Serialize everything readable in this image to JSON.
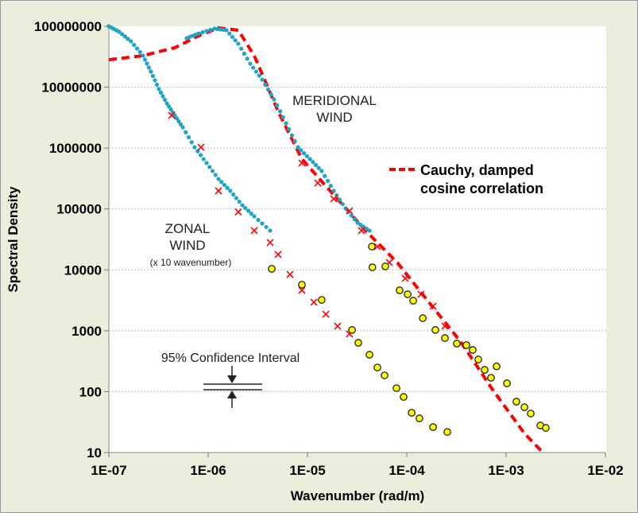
{
  "chart_data": {
    "type": "scatter",
    "xlabel": "Wavenumber (rad/m)",
    "ylabel": "Spectral Density",
    "xscale": "log",
    "yscale": "log",
    "xlim": [
      1e-07,
      0.01
    ],
    "ylim": [
      10,
      100000000
    ],
    "x_ticks": [
      "1E-07",
      "1E-06",
      "1E-05",
      "1E-04",
      "1E-03",
      "1E-02"
    ],
    "y_ticks": [
      "100000000",
      "10000000",
      "1000000",
      "100000",
      "10000",
      "1000",
      "100",
      "10"
    ],
    "grid": "horizontal dotted",
    "legend_position": "right",
    "legend": {
      "line1": "Cauchy, damped",
      "line2": "cosine correlation"
    },
    "annotations": {
      "meridional_1": "MERIDIONAL",
      "meridional_2": "WIND",
      "zonal_1": "ZONAL",
      "zonal_2": "WIND",
      "zonal_note": "(x 10 wavenumber)",
      "confidence": "95% Confidence Interval"
    },
    "colors": {
      "cyan": "#1fa3c8",
      "red": "#ff0000",
      "yellow": "#ffff00",
      "background": "#ebeedd"
    },
    "series": [
      {
        "marker": "dot",
        "color": "#1fa3c8",
        "points": [
          [
            1e-07,
            100000000.0
          ],
          [
            1.27e-07,
            81100000.0
          ],
          [
            1.67e-07,
            56500000.0
          ],
          [
            2.21e-07,
            32900000.0
          ],
          [
            2.65e-07,
            18000000.0
          ],
          [
            3.19e-07,
            9300000.0
          ],
          [
            3.84e-07,
            5410000.0
          ],
          [
            4.61e-07,
            3440000.0
          ],
          [
            5.55e-07,
            2190000.0
          ],
          [
            7.31e-07,
            1030000.0
          ],
          [
            9.64e-07,
            567000.0
          ],
          [
            1.27e-06,
            311000.0
          ],
          [
            1.67e-06,
            198000.0
          ],
          [
            2.21e-06,
            115000.0
          ],
          [
            2.91e-06,
            75600.0
          ],
          [
            4.21e-06,
            44100.0
          ]
        ]
      },
      {
        "marker": "dot",
        "color": "#1fa3c8",
        "points": [
          [
            6.08e-07,
            63700000.0
          ],
          [
            8.02e-07,
            76200000.0
          ],
          [
            1.16e-06,
            91400000.0
          ],
          [
            1.53e-06,
            86100000.0
          ],
          [
            2.01e-06,
            51700000.0
          ],
          [
            2.65e-06,
            24300000.0
          ],
          [
            3.5e-06,
            13300000.0
          ],
          [
            4.61e-06,
            6290000.0
          ],
          [
            6.08e-06,
            2550000.0
          ],
          [
            8.02e-06,
            1030000.0
          ],
          [
            1.06e-05,
            659000.0
          ],
          [
            1.39e-05,
            420000.0
          ],
          [
            1.84e-05,
            198000.0
          ],
          [
            2.42e-05,
            102000.0
          ],
          [
            3.19e-05,
            59400.0
          ],
          [
            4.21e-05,
            44100.0
          ]
        ]
      },
      {
        "marker": "cross",
        "color": "#ff0000",
        "points": [
          [
            4.29e-07,
            3440000.0
          ],
          [
            8.47e-07,
            1030000.0
          ],
          [
            1.27e-06,
            198000.0
          ],
          [
            2.01e-06,
            89500.0
          ],
          [
            2.91e-06,
            44100.0
          ],
          [
            4.21e-06,
            28100.0
          ],
          [
            5.06e-06,
            17900.0
          ],
          [
            6.67e-06,
            8420
          ],
          [
            8.79e-06,
            4610
          ],
          [
            1.16e-05,
            2940
          ],
          [
            1.53e-05,
            1870
          ],
          [
            2.01e-05,
            1190
          ],
          [
            2.65e-05,
            883
          ]
        ]
      },
      {
        "marker": "cross",
        "color": "#ff0000",
        "points": [
          [
            8.79e-06,
            567000.0
          ],
          [
            1.27e-05,
            267000.0
          ],
          [
            1.84e-05,
            147000.0
          ],
          [
            2.65e-05,
            93300.0
          ],
          [
            3.5e-05,
            44100.0
          ],
          [
            5.06e-05,
            24100.0
          ],
          [
            6.67e-05,
            13200.0
          ],
          [
            9.64e-05,
            7240
          ],
          [
            0.000139,
            3970
          ],
          [
            0.000184,
            2530
          ],
          [
            0.000242,
            1190
          ]
        ]
      },
      {
        "marker": "circle",
        "color": "#ffff00",
        "points": [
          [
            4.37e-06,
            10400.0
          ],
          [
            8.79e-06,
            5700
          ],
          [
            1.39e-05,
            3210
          ],
          [
            2.81e-05,
            1030
          ],
          [
            3.25e-05,
            634
          ],
          [
            4.21e-05,
            404
          ],
          [
            5.06e-05,
            249
          ],
          [
            5.97e-05,
            185
          ],
          [
            7.87e-05,
            114
          ],
          [
            9.29e-05,
            82
          ],
          [
            0.000112,
            45
          ],
          [
            0.000134,
            36.4
          ],
          [
            0.000184,
            26.2
          ],
          [
            0.000256,
            21.8
          ]
        ]
      },
      {
        "marker": "circle",
        "color": "#ffff00",
        "points": [
          [
            4.45e-05,
            24100.0
          ],
          [
            4.5e-05,
            11000.0
          ],
          [
            6.08e-05,
            11400.0
          ],
          [
            8.47e-05,
            4610
          ],
          [
            0.000102,
            3970
          ],
          [
            0.000116,
            3120
          ],
          [
            0.000145,
            1610
          ],
          [
            0.000194,
            1030
          ],
          [
            0.000242,
            759
          ],
          [
            0.000319,
            615
          ],
          [
            0.000398,
            580
          ],
          [
            0.000461,
            484
          ],
          [
            0.000525,
            337
          ],
          [
            0.000608,
            228
          ],
          [
            0.000705,
            169
          ],
          [
            0.000802,
            260
          ],
          [
            0.00102,
            137
          ],
          [
            0.00127,
            68.5
          ],
          [
            0.00153,
            55.5
          ],
          [
            0.00177,
            43.7
          ],
          [
            0.00221,
            27.8
          ],
          [
            0.00251,
            25.4
          ]
        ]
      },
      {
        "marker": "dashed-line",
        "color": "#ff0000",
        "name": "Cauchy, damped cosine correlation",
        "points": [
          [
            1e-07,
            28200000.0
          ],
          [
            2.21e-07,
            32900000.0
          ],
          [
            4.61e-07,
            44400000.0
          ],
          [
            8.02e-07,
            69700000.0
          ],
          [
            1.27e-06,
            94200000.0
          ],
          [
            2.01e-06,
            86100000.0
          ],
          [
            2.91e-06,
            32900000.0
          ],
          [
            5.06e-06,
            4010000.0
          ],
          [
            8.79e-06,
            659000.0
          ],
          [
            1.84e-05,
            170000.0
          ],
          [
            3.84e-05,
            44100.0
          ],
          [
            8.02e-05,
            13200.0
          ],
          [
            0.000167,
            2940
          ],
          [
            0.00035,
            653
          ],
          [
            0.000731,
            108
          ],
          [
            0.00153,
            20.6
          ],
          [
            0.00235,
            10
          ]
        ]
      }
    ]
  }
}
